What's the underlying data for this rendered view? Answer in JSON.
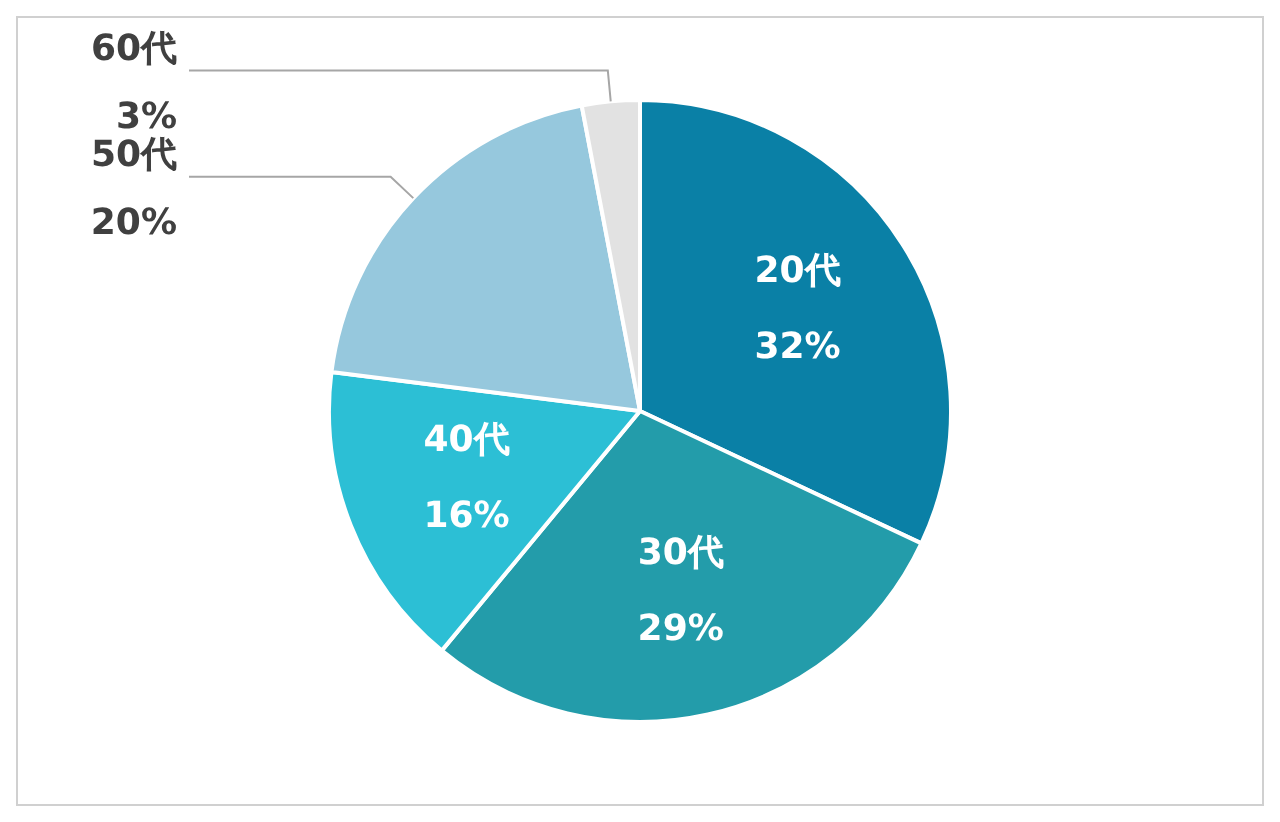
{
  "chart_data": {
    "type": "pie",
    "categories": [
      "20代",
      "30代",
      "40代",
      "50代",
      "60代"
    ],
    "values": [
      32,
      29,
      16,
      20,
      3
    ],
    "colors": [
      "#0a80a6",
      "#239caa",
      "#2cbfd5",
      "#96c8dd",
      "#e2e2e2"
    ],
    "value_labels": [
      "32%",
      "29%",
      "16%",
      "20%",
      "3%"
    ],
    "legend": false
  }
}
